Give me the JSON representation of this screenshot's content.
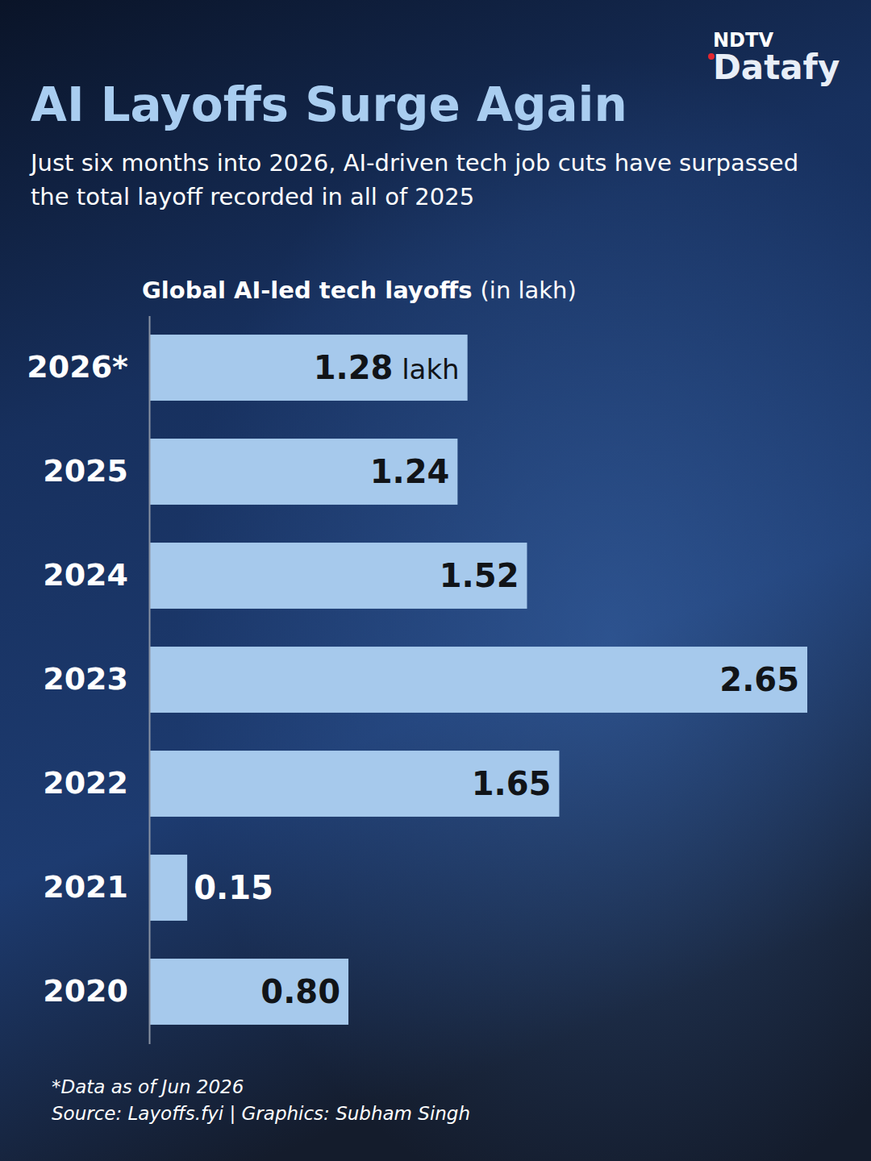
{
  "chart_data": {
    "type": "bar",
    "orientation": "horizontal",
    "brand": [
      "NDTV",
      "Datafy"
    ],
    "title": "AI Layoffs Surge Again",
    "subtitle": "Just six months into 2026, AI-driven tech job cuts have surpassed the total layoff recorded in all of 2025",
    "xlabel": "Global AI-led tech layoffs (in lakh)",
    "categories": [
      "2026*",
      "2025",
      "2024",
      "2023",
      "2022",
      "2021",
      "2020"
    ],
    "values": [
      1.28,
      1.24,
      1.52,
      2.65,
      1.65,
      0.15,
      0.8
    ],
    "value_labels": [
      "1.28 lakh",
      "1.24",
      "1.52",
      "2.65",
      "1.65",
      "0.15",
      "0.80"
    ],
    "color": "#a6c9ec",
    "xlim": [
      0,
      2.65
    ],
    "data_labels": true,
    "tick_labels": "y",
    "grid": false,
    "notes": [
      "*Data as of Jun 2026",
      "Source: Layoffs.fyi | Graphics: Subham Singh"
    ]
  }
}
